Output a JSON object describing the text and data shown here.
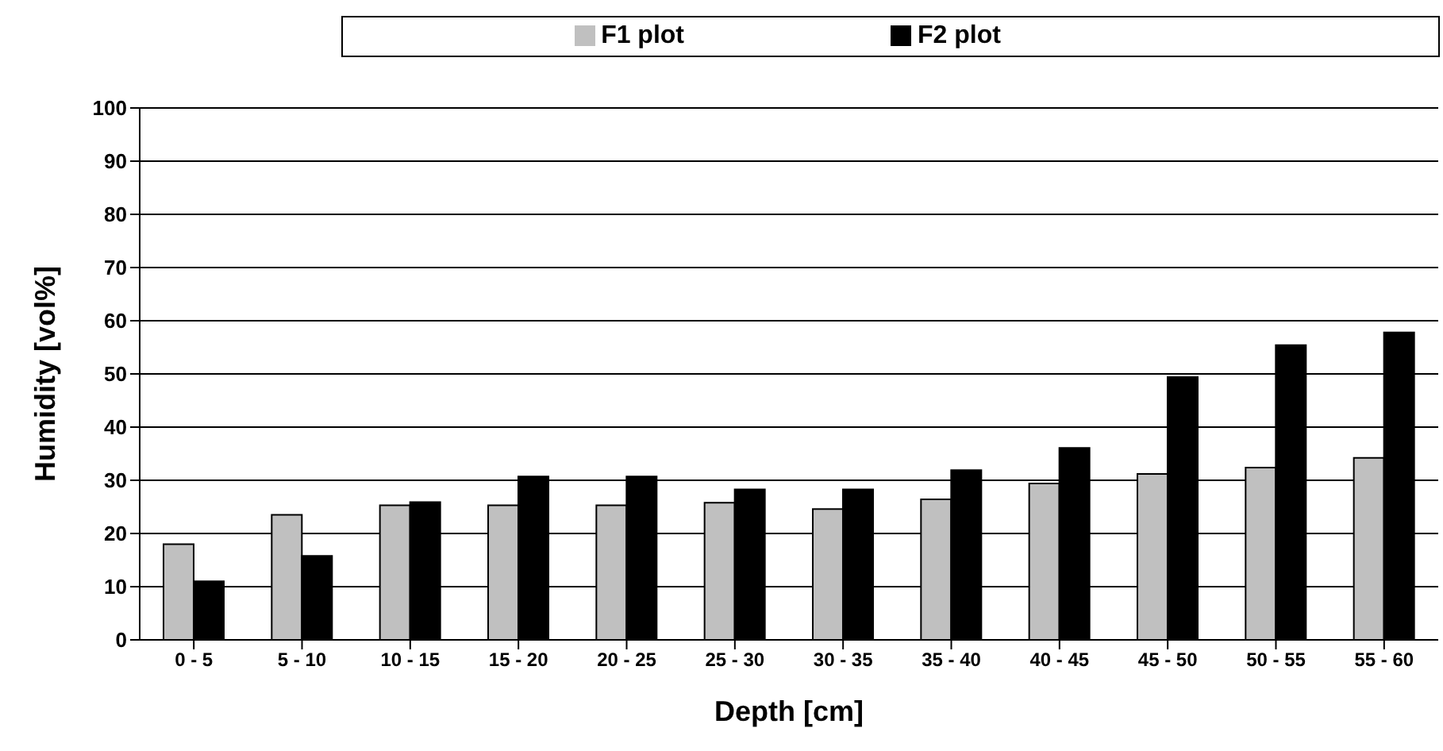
{
  "chart_data": {
    "type": "bar",
    "xlabel": "Depth [cm]",
    "ylabel": "Humidity [vol%]",
    "categories": [
      "0 - 5",
      "5 - 10",
      "10 - 15",
      "15 - 20",
      "20 - 25",
      "25 - 30",
      "30 - 35",
      "35 - 40",
      "40 - 45",
      "45 - 50",
      "50 - 55",
      "55 - 60"
    ],
    "series": [
      {
        "name": "F1 plot",
        "color": "#c0c0c0",
        "values": [
          18,
          23.5,
          25.3,
          25.3,
          25.3,
          25.8,
          24.6,
          26.4,
          29.4,
          31.2,
          32.4,
          34.2
        ]
      },
      {
        "name": "F2 plot",
        "color": "#000000",
        "values": [
          11,
          15.8,
          25.9,
          30.7,
          30.7,
          28.3,
          28.3,
          31.9,
          36.1,
          49.4,
          55.4,
          57.8
        ]
      }
    ],
    "ylim": [
      0,
      100
    ],
    "yticks": [
      0,
      10,
      20,
      30,
      40,
      50,
      60,
      70,
      80,
      90,
      100
    ],
    "grid": "y",
    "legend": "top"
  }
}
